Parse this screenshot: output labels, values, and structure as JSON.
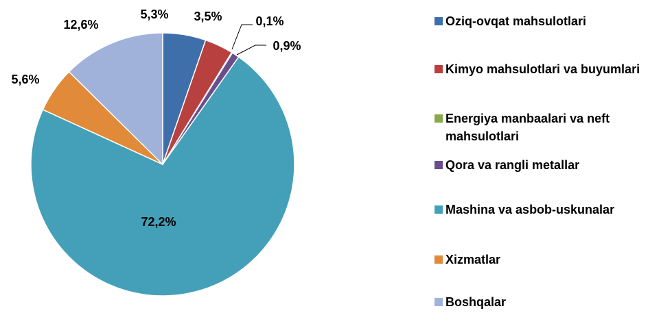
{
  "chart_data": {
    "type": "pie",
    "categories": [
      "Oziq-ovqat mahsulotlari",
      "Kimyo mahsulotlari va buyumlari",
      "Energiya manbaalari va neft mahsulotlari",
      "Qora va rangli metallar",
      "Mashina va asbob-uskunalar",
      "Xizmatlar",
      "Boshqalar"
    ],
    "values": [
      5.3,
      3.5,
      0.1,
      0.9,
      72.2,
      5.6,
      12.6
    ],
    "value_labels": [
      "5,3%",
      "3,5%",
      "0,1%",
      "0,9%",
      "72,2%",
      "5,6%",
      "12,6%"
    ],
    "colors": [
      "#3f6faa",
      "#b8413f",
      "#88a84a",
      "#6a4d8c",
      "#44a0b8",
      "#e08a3a",
      "#a0b2da"
    ],
    "legend": "right"
  }
}
